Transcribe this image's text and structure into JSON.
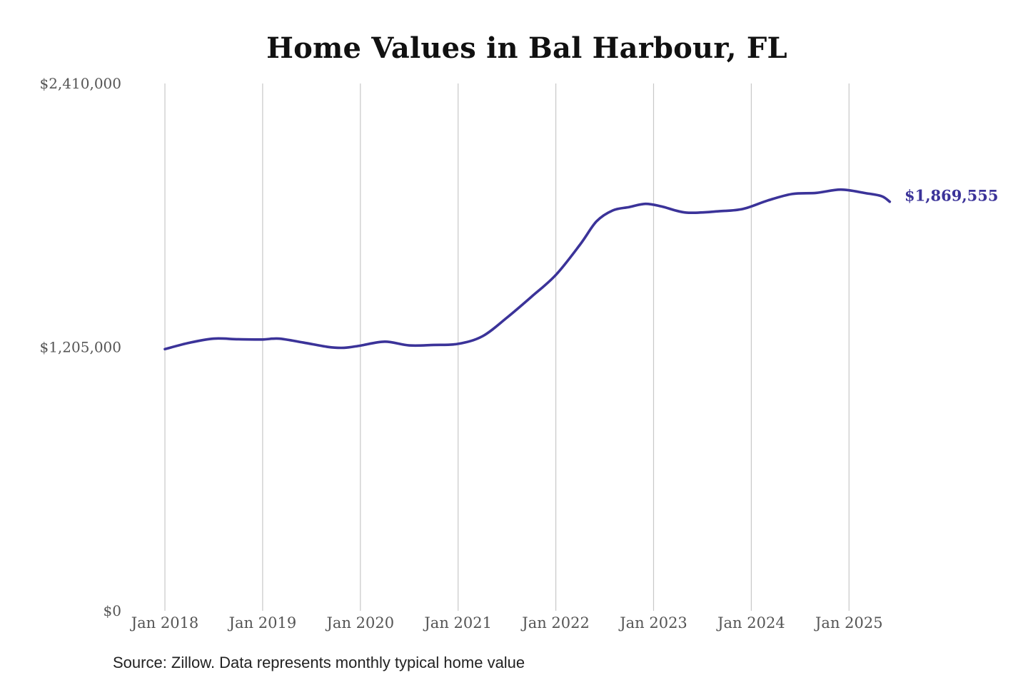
{
  "colors": {
    "series_line": "#3b3399",
    "gridline": "#c8c8c8",
    "axis_text": "#555555",
    "title_text": "#111111"
  },
  "chart_data": {
    "type": "line",
    "title": "Home Values in Bal Harbour, FL",
    "source_note": "Source: Zillow. Data represents monthly typical home value",
    "x_axis": {
      "type": "date",
      "tick_labels": [
        "Jan 2018",
        "Jan 2019",
        "Jan 2020",
        "Jan 2021",
        "Jan 2022",
        "Jan 2023",
        "Jan 2024",
        "Jan 2025"
      ],
      "range": [
        "2018-01",
        "2025-06"
      ],
      "grid": true
    },
    "y_axis": {
      "range": [
        0,
        2410000
      ],
      "tick_values": [
        0,
        1205000,
        2410000
      ],
      "tick_labels": [
        "$0",
        "$1,205,000",
        "$2,410,000"
      ],
      "grid": false
    },
    "end_label": "$1,869,555",
    "series": [
      {
        "points": [
          [
            "2018-01",
            1196000
          ],
          [
            "2018-04",
            1225000
          ],
          [
            "2018-07",
            1244000
          ],
          [
            "2018-10",
            1241000
          ],
          [
            "2019-01",
            1240000
          ],
          [
            "2019-03",
            1244000
          ],
          [
            "2019-06",
            1226000
          ],
          [
            "2019-09",
            1206000
          ],
          [
            "2019-11",
            1202000
          ],
          [
            "2020-01",
            1212000
          ],
          [
            "2020-04",
            1230000
          ],
          [
            "2020-07",
            1213000
          ],
          [
            "2020-10",
            1215000
          ],
          [
            "2021-01",
            1220000
          ],
          [
            "2021-04",
            1255000
          ],
          [
            "2021-07",
            1340000
          ],
          [
            "2021-10",
            1435000
          ],
          [
            "2022-01",
            1535000
          ],
          [
            "2022-04",
            1675000
          ],
          [
            "2022-06",
            1780000
          ],
          [
            "2022-08",
            1830000
          ],
          [
            "2022-10",
            1845000
          ],
          [
            "2022-12",
            1860000
          ],
          [
            "2023-02",
            1848000
          ],
          [
            "2023-05",
            1820000
          ],
          [
            "2023-09",
            1826000
          ],
          [
            "2023-12",
            1837000
          ],
          [
            "2024-03",
            1875000
          ],
          [
            "2024-06",
            1905000
          ],
          [
            "2024-09",
            1910000
          ],
          [
            "2024-12",
            1925000
          ],
          [
            "2025-03",
            1909000
          ],
          [
            "2025-05",
            1895000
          ],
          [
            "2025-06",
            1869555
          ]
        ]
      }
    ]
  }
}
